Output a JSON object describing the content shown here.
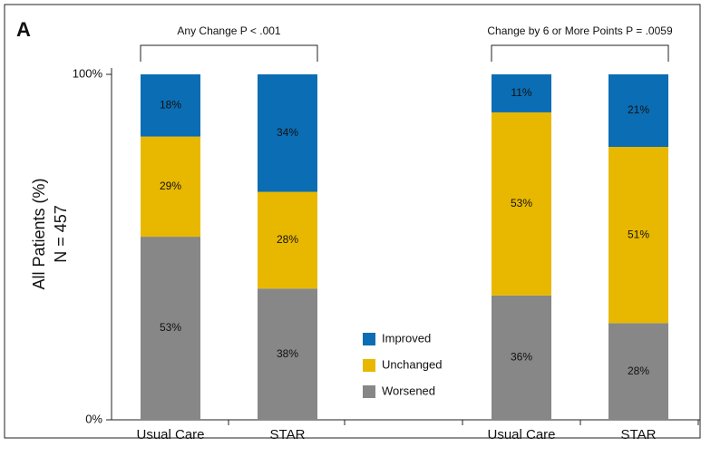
{
  "chart_data": {
    "type": "stacked-bar",
    "panel": "A",
    "ylabel": [
      "All Patients (%)",
      "N = 457"
    ],
    "annotations": [
      "Any Change  P < .001",
      "Change by 6 or More Points  P = .0059"
    ],
    "categories": [
      "Usual Care",
      "STAR",
      "Usual Care",
      "STAR"
    ],
    "series": [
      {
        "name": "Worsened",
        "color": "#878787",
        "values": [
          53,
          38,
          36,
          28
        ],
        "value_labels": [
          "53%",
          "38%",
          "36%",
          "28%"
        ]
      },
      {
        "name": "Unchanged",
        "color": "#e8b800",
        "values": [
          29,
          28,
          53,
          51
        ],
        "value_labels": [
          "29%",
          "28%",
          "53%",
          "51%"
        ]
      },
      {
        "name": "Improved",
        "color": "#0b6db3",
        "values": [
          18,
          34,
          11,
          21
        ],
        "value_labels": [
          "18%",
          "34%",
          "11%",
          "21%"
        ]
      }
    ],
    "ylim": [
      0,
      100
    ],
    "yticks": [
      {
        "value": 0,
        "label": "0%"
      },
      {
        "value": 100,
        "label": "100%"
      }
    ]
  }
}
